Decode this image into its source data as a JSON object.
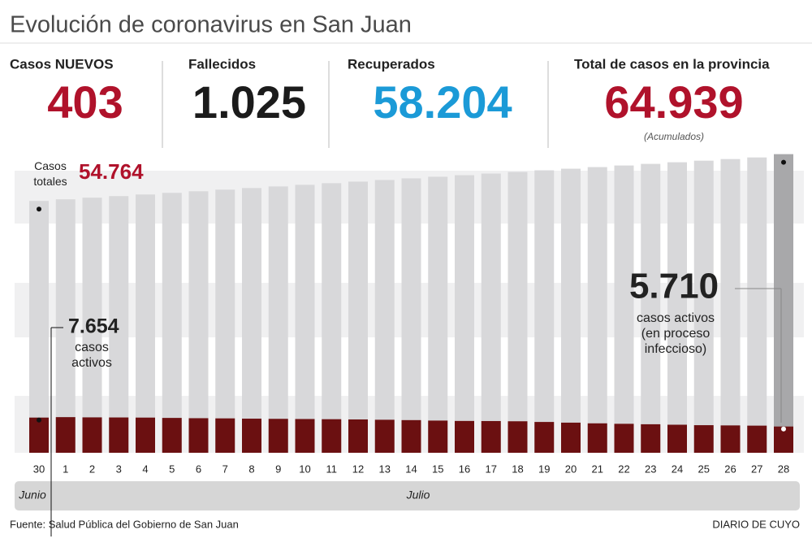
{
  "title": "Evolución de coronavirus en San Juan",
  "stats": [
    {
      "label": "Casos NUEVOS",
      "value": "403",
      "color": "#b0122b"
    },
    {
      "label": "Fallecidos",
      "value": "1.025",
      "color": "#1b1b1b"
    },
    {
      "label": "Recuperados",
      "value": "58.204",
      "color": "#1b9ad7"
    },
    {
      "label": "Total de casos en la provincia",
      "value": "64.939",
      "color": "#b0122b",
      "note": "(Acumulados)"
    }
  ],
  "chart_data": {
    "type": "bar",
    "categories": [
      "30",
      "1",
      "2",
      "3",
      "4",
      "5",
      "6",
      "7",
      "8",
      "9",
      "10",
      "11",
      "12",
      "13",
      "14",
      "15",
      "16",
      "17",
      "18",
      "19",
      "20",
      "21",
      "22",
      "23",
      "24",
      "25",
      "26",
      "27",
      "28"
    ],
    "months": [
      "Junio",
      "Julio"
    ],
    "ylim": [
      0,
      70000
    ],
    "series": [
      {
        "name": "Casos totales",
        "color": "#d8d8da",
        "highlight_color": "#a8a8aa",
        "values": [
          54764,
          55120,
          55470,
          55820,
          56170,
          56520,
          56870,
          57220,
          57570,
          57920,
          58270,
          58620,
          58970,
          59320,
          59670,
          60020,
          60370,
          60720,
          61070,
          61420,
          61770,
          62120,
          62470,
          62820,
          63170,
          63520,
          63870,
          64220,
          64939
        ],
        "value_labels": [
          "54.764",
          null,
          null,
          null,
          null,
          null,
          null,
          null,
          null,
          null,
          null,
          null,
          null,
          null,
          null,
          null,
          null,
          null,
          null,
          null,
          null,
          null,
          null,
          null,
          null,
          null,
          null,
          null,
          null
        ]
      },
      {
        "name": "casos activos",
        "color": "#6b1011",
        "values": [
          7654,
          7750,
          7700,
          7680,
          7650,
          7580,
          7520,
          7480,
          7420,
          7380,
          7340,
          7300,
          7250,
          7180,
          7100,
          7000,
          6920,
          6900,
          6850,
          6700,
          6550,
          6400,
          6300,
          6200,
          6100,
          6000,
          5950,
          5900,
          5710
        ],
        "value_labels": [
          "7.654",
          null,
          null,
          null,
          null,
          null,
          null,
          null,
          null,
          null,
          null,
          null,
          null,
          null,
          null,
          null,
          null,
          null,
          null,
          null,
          null,
          null,
          null,
          null,
          null,
          null,
          null,
          null,
          "5.710"
        ],
        "note": [
          "casos activos",
          "(en proceso",
          "infeccioso)"
        ]
      }
    ]
  },
  "source": "Fuente: Salud Pública del Gobierno de San Juan",
  "credit": "DIARIO DE CUYO"
}
